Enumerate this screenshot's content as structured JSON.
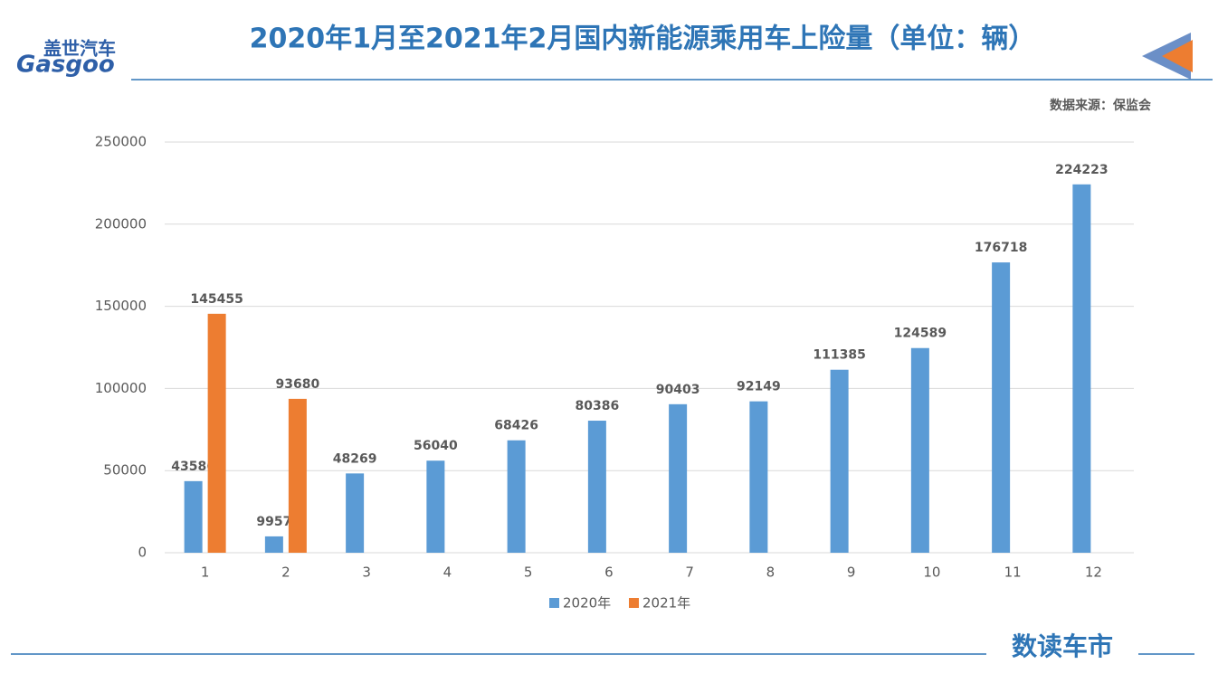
{
  "logo": {
    "cn": "盖世汽车",
    "en": "Gasgoo"
  },
  "brand": "数读车市",
  "chart_data": {
    "type": "bar",
    "title": "2020年1月至2021年2月国内新能源乘用车上险量（单位：辆）",
    "source": "数据来源：保监会",
    "categories": [
      "1",
      "2",
      "3",
      "4",
      "5",
      "6",
      "7",
      "8",
      "9",
      "10",
      "11",
      "12"
    ],
    "series": [
      {
        "name": "2020年",
        "color": "#5b9bd5",
        "values": [
          43586,
          9957,
          48269,
          56040,
          68426,
          80386,
          90403,
          92149,
          111385,
          124589,
          176718,
          224223
        ]
      },
      {
        "name": "2021年",
        "color": "#ed7d31",
        "values": [
          145455,
          93680,
          null,
          null,
          null,
          null,
          null,
          null,
          null,
          null,
          null,
          null
        ]
      }
    ],
    "ylim": [
      0,
      250000
    ],
    "yticks": [
      0,
      50000,
      100000,
      150000,
      200000,
      250000
    ],
    "grid": true,
    "legend": "bottom"
  }
}
